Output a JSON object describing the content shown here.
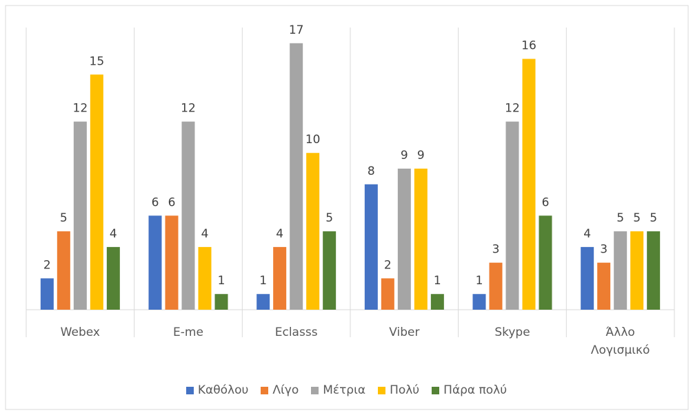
{
  "chart_data": {
    "type": "bar",
    "categories": [
      "Webex",
      "E-me",
      "Eclasss",
      "Viber",
      "Skype",
      "Άλλο Λογισμικό"
    ],
    "series": [
      {
        "name": "Καθόλου",
        "color": "#4472c4",
        "values": [
          2,
          6,
          1,
          8,
          1,
          4
        ]
      },
      {
        "name": "Λίγο",
        "color": "#ed7d31",
        "values": [
          5,
          6,
          4,
          2,
          3,
          3
        ]
      },
      {
        "name": "Μέτρια",
        "color": "#a5a5a5",
        "values": [
          12,
          12,
          17,
          9,
          12,
          5
        ]
      },
      {
        "name": "Πολύ",
        "color": "#ffc000",
        "values": [
          15,
          4,
          10,
          9,
          16,
          5
        ]
      },
      {
        "name": "Πάρα πολύ",
        "color": "#548235",
        "values": [
          4,
          1,
          5,
          1,
          6,
          5
        ]
      }
    ],
    "ylim": [
      0,
      18
    ],
    "legend": "bottom"
  }
}
